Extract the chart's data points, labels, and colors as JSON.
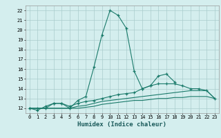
{
  "xlabel": "Humidex (Indice chaleur)",
  "x_values": [
    0,
    1,
    2,
    3,
    4,
    5,
    6,
    7,
    8,
    9,
    10,
    11,
    12,
    13,
    14,
    15,
    16,
    17,
    18,
    19,
    20,
    21,
    22,
    23
  ],
  "line1": [
    12,
    11.8,
    12.2,
    12.5,
    12.5,
    12.0,
    12.8,
    13.2,
    16.2,
    19.5,
    22.0,
    21.5,
    20.2,
    15.8,
    14.0,
    14.3,
    15.3,
    15.5,
    14.7,
    null,
    null,
    null,
    null,
    null
  ],
  "line2": [
    12,
    12,
    12,
    12.5,
    12.5,
    12.2,
    12.5,
    12.7,
    12.8,
    13.0,
    13.2,
    13.4,
    13.5,
    13.6,
    14.0,
    14.3,
    14.5,
    14.5,
    14.5,
    14.3,
    14.0,
    14.0,
    13.8,
    13.0
  ],
  "line3": [
    12,
    12,
    12,
    12,
    12,
    12,
    12.2,
    12.3,
    12.5,
    12.7,
    12.8,
    12.9,
    13.0,
    13.1,
    13.2,
    13.3,
    13.4,
    13.5,
    13.6,
    13.7,
    13.8,
    13.8,
    13.8,
    13.0
  ],
  "line4": [
    12,
    12,
    12,
    12,
    12,
    12,
    12,
    12.1,
    12.2,
    12.4,
    12.5,
    12.6,
    12.7,
    12.8,
    12.8,
    12.9,
    13.0,
    13.0,
    13.1,
    13.1,
    13.2,
    13.2,
    13.2,
    13.0
  ],
  "ylim": [
    11.5,
    22.5
  ],
  "yticks": [
    12,
    13,
    14,
    15,
    16,
    17,
    18,
    19,
    20,
    21,
    22
  ],
  "xlim": [
    -0.5,
    23.5
  ],
  "line_color": "#1a7a6a",
  "bg_color": "#d4eeee",
  "grid_color": "#aacccc"
}
